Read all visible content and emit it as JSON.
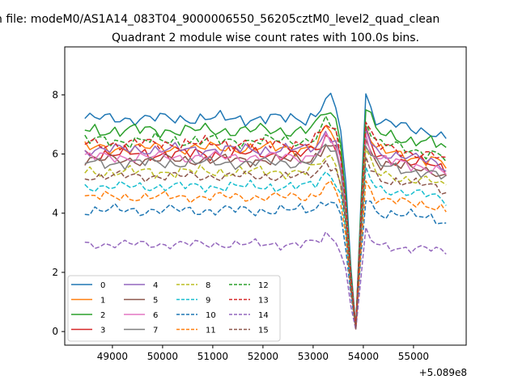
{
  "chart_data": {
    "type": "line",
    "suptitle": "n file: modeM0/AS1A14_083T04_9000006550_56205cztM0_level2_quad_clean",
    "title": "Quadrant 2 module wise count rates with 100.0s bins.",
    "xlabel": "",
    "ylabel": "",
    "x_offset_label": "+5.089e8",
    "xlim": [
      48050,
      56050
    ],
    "ylim": [
      -0.46,
      9.62
    ],
    "x_ticks": [
      49000,
      50000,
      51000,
      52000,
      53000,
      54000,
      55000
    ],
    "x_tick_labels": [
      "49000",
      "50000",
      "51000",
      "52000",
      "53000",
      "54000",
      "55000"
    ],
    "y_ticks": [
      0,
      2,
      4,
      6,
      8
    ],
    "y_tick_labels": [
      "0",
      "2",
      "4",
      "6",
      "8"
    ],
    "grid": false,
    "legend_position": "lower-left",
    "legend_columns": 4,
    "x": [
      48450,
      48550,
      48650,
      48750,
      48850,
      48950,
      49050,
      49150,
      49250,
      49350,
      49450,
      49550,
      49650,
      49750,
      49850,
      49950,
      50050,
      50150,
      50250,
      50350,
      50450,
      50550,
      50650,
      50750,
      50850,
      50950,
      51050,
      51150,
      51250,
      51350,
      51450,
      51550,
      51650,
      51750,
      51850,
      51950,
      52050,
      52150,
      52250,
      52350,
      52450,
      52550,
      52650,
      52750,
      52850,
      52950,
      53050,
      53150,
      53250,
      53350,
      53450,
      53550,
      53650,
      53750,
      53850,
      53950,
      54050,
      54150,
      54250,
      54350,
      54450,
      54550,
      54650,
      54750,
      54850,
      54950,
      55050,
      55150,
      55250,
      55350,
      55450,
      55550,
      55650
    ],
    "envelope": [
      1.0,
      1.0,
      1.0,
      1.0,
      1.0,
      1.0,
      1.0,
      1.0,
      1.0,
      1.0,
      1.0,
      1.0,
      1.0,
      1.0,
      1.0,
      1.0,
      1.0,
      1.0,
      1.0,
      1.0,
      1.0,
      1.0,
      1.0,
      1.0,
      1.0,
      1.0,
      1.0,
      1.0,
      1.0,
      1.0,
      1.0,
      1.0,
      1.0,
      1.0,
      1.0,
      1.0,
      1.0,
      1.0,
      1.0,
      1.0,
      1.0,
      1.0,
      1.0,
      1.0,
      1.0,
      1.01,
      1.02,
      1.05,
      1.1,
      1.08,
      1.05,
      0.94,
      0.7,
      0.3,
      0.02,
      0.6,
      1.12,
      1.05,
      1.0,
      0.98,
      0.98,
      0.97,
      0.97,
      0.96,
      0.96,
      0.95,
      0.95,
      0.95,
      0.94,
      0.94,
      0.93,
      0.92,
      0.9
    ],
    "series": [
      {
        "name": "0",
        "color": "#1f77b4",
        "dash": "solid",
        "base": 7.2,
        "amp": 0.22
      },
      {
        "name": "1",
        "color": "#ff7f0e",
        "dash": "solid",
        "base": 6.2,
        "amp": 0.22
      },
      {
        "name": "2",
        "color": "#2ca02c",
        "dash": "solid",
        "base": 6.8,
        "amp": 0.24
      },
      {
        "name": "3",
        "color": "#d62728",
        "dash": "solid",
        "base": 6.0,
        "amp": 0.22
      },
      {
        "name": "4",
        "color": "#9467bd",
        "dash": "solid",
        "base": 6.15,
        "amp": 0.2
      },
      {
        "name": "5",
        "color": "#8c564b",
        "dash": "solid",
        "base": 5.8,
        "amp": 0.2
      },
      {
        "name": "6",
        "color": "#e377c2",
        "dash": "solid",
        "base": 5.9,
        "amp": 0.2
      },
      {
        "name": "7",
        "color": "#7f7f7f",
        "dash": "solid",
        "base": 5.7,
        "amp": 0.2
      },
      {
        "name": "8",
        "color": "#bcbd22",
        "dash": "dashed",
        "base": 5.4,
        "amp": 0.2
      },
      {
        "name": "9",
        "color": "#17becf",
        "dash": "dashed",
        "base": 4.9,
        "amp": 0.18
      },
      {
        "name": "10",
        "color": "#1f77b4",
        "dash": "dashed",
        "base": 4.1,
        "amp": 0.2
      },
      {
        "name": "11",
        "color": "#ff7f0e",
        "dash": "dashed",
        "base": 4.55,
        "amp": 0.18
      },
      {
        "name": "12",
        "color": "#2ca02c",
        "dash": "dashed",
        "base": 6.45,
        "amp": 0.22
      },
      {
        "name": "13",
        "color": "#d62728",
        "dash": "dashed",
        "base": 6.35,
        "amp": 0.22
      },
      {
        "name": "14",
        "color": "#9467bd",
        "dash": "dashed",
        "base": 2.95,
        "amp": 0.16
      },
      {
        "name": "15",
        "color": "#8c564b",
        "dash": "dashed",
        "base": 5.25,
        "amp": 0.18
      }
    ]
  }
}
